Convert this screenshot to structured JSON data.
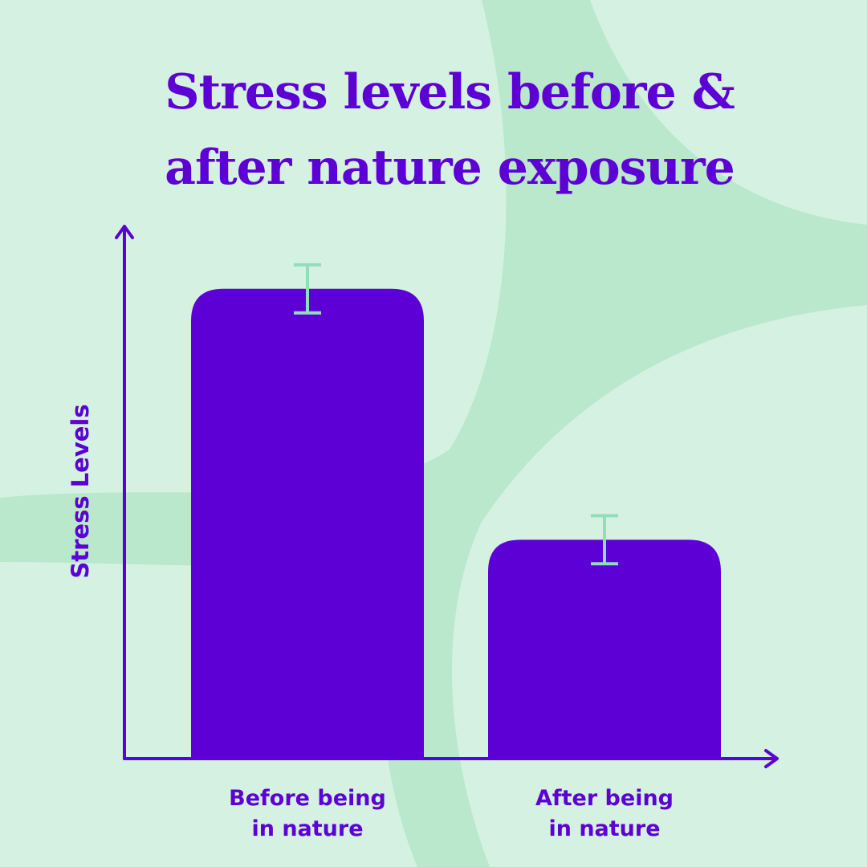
{
  "chart_data": {
    "type": "bar",
    "title": "Stress levels before &\nafter nature exposure",
    "y_label": "Stress Levels",
    "categories": [
      "Before being\nin nature",
      "After being\nin nature"
    ],
    "values": [
      88,
      41
    ],
    "errors": [
      4.5,
      4.5
    ],
    "color": "#5c00d6",
    "error_color": "#8fe0b8",
    "ylim": [
      0,
      100
    ]
  }
}
